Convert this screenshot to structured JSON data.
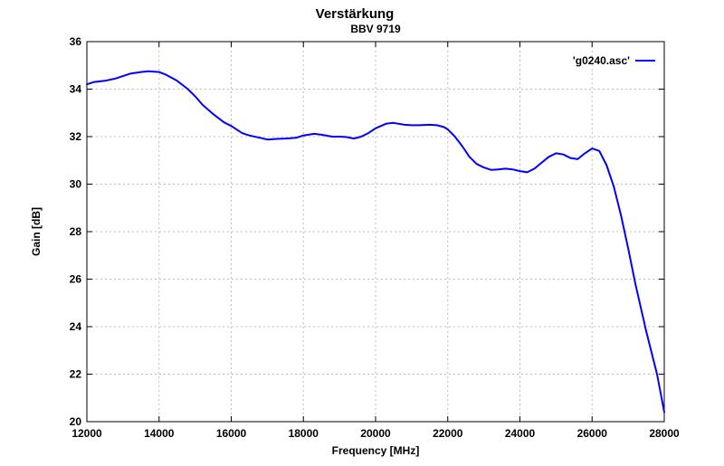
{
  "chart_data": {
    "type": "line",
    "title": "Verstärkung",
    "subtitle": "BBV 9719",
    "xlabel": "Frequency [MHz]",
    "ylabel": "Gain [dB]",
    "xlim": [
      12000,
      28000
    ],
    "ylim": [
      20,
      36
    ],
    "xticks": [
      12000,
      14000,
      16000,
      18000,
      20000,
      22000,
      24000,
      26000,
      28000
    ],
    "yticks": [
      20,
      22,
      24,
      26,
      28,
      30,
      32,
      34,
      36
    ],
    "grid": true,
    "legend": "top-right",
    "series": [
      {
        "name": "'g0240.asc'",
        "color": "#0000ff",
        "x": [
          12000,
          12200,
          12500,
          12800,
          13000,
          13200,
          13500,
          13700,
          14000,
          14200,
          14500,
          14800,
          15000,
          15200,
          15500,
          15800,
          16000,
          16300,
          16500,
          16800,
          17000,
          17200,
          17500,
          17800,
          18000,
          18300,
          18500,
          18800,
          19000,
          19200,
          19400,
          19600,
          19800,
          20000,
          20300,
          20500,
          20800,
          21000,
          21200,
          21500,
          21700,
          21900,
          22000,
          22200,
          22400,
          22600,
          22800,
          23000,
          23200,
          23400,
          23600,
          23800,
          24000,
          24200,
          24400,
          24600,
          24800,
          25000,
          25200,
          25400,
          25600,
          25800,
          26000,
          26200,
          26400,
          26600,
          26800,
          27000,
          27200,
          27500,
          27800,
          28000
        ],
        "y": [
          34.2,
          34.3,
          34.35,
          34.45,
          34.55,
          34.65,
          34.72,
          34.75,
          34.72,
          34.6,
          34.35,
          34.0,
          33.7,
          33.35,
          32.95,
          32.6,
          32.45,
          32.15,
          32.05,
          31.95,
          31.88,
          31.9,
          31.92,
          31.95,
          32.05,
          32.12,
          32.08,
          32.0,
          32.0,
          31.98,
          31.92,
          32.0,
          32.15,
          32.35,
          32.55,
          32.58,
          32.5,
          32.48,
          32.48,
          32.5,
          32.48,
          32.4,
          32.3,
          32.0,
          31.6,
          31.15,
          30.85,
          30.7,
          30.6,
          30.62,
          30.65,
          30.62,
          30.55,
          30.5,
          30.65,
          30.9,
          31.15,
          31.3,
          31.25,
          31.1,
          31.05,
          31.3,
          31.5,
          31.4,
          30.8,
          29.9,
          28.7,
          27.3,
          25.8,
          23.8,
          22.0,
          20.4
        ]
      }
    ]
  }
}
